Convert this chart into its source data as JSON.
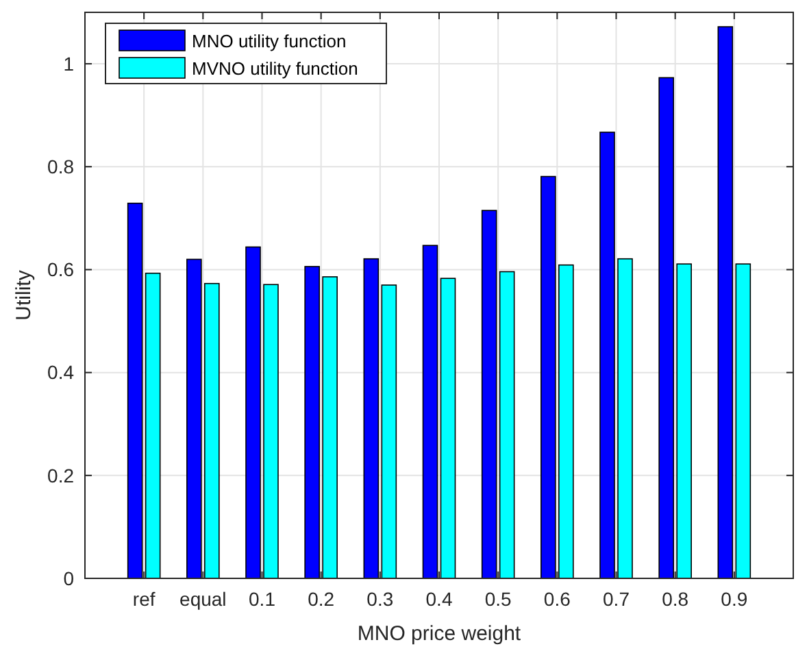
{
  "chart_data": {
    "type": "bar",
    "xlabel": "MNO price weight",
    "ylabel": "Utility",
    "categories": [
      "ref",
      "equal",
      "0.1",
      "0.2",
      "0.3",
      "0.4",
      "0.5",
      "0.6",
      "0.7",
      "0.8",
      "0.9"
    ],
    "series": [
      {
        "name": "MNO utility function",
        "color": "#0000ff",
        "values": [
          0.729,
          0.62,
          0.644,
          0.606,
          0.621,
          0.647,
          0.715,
          0.781,
          0.867,
          0.973,
          1.072
        ]
      },
      {
        "name": "MVNO utility function",
        "color": "#00ffff",
        "values": [
          0.593,
          0.573,
          0.571,
          0.586,
          0.57,
          0.583,
          0.596,
          0.609,
          0.621,
          0.611,
          0.611
        ]
      }
    ],
    "ylim": [
      0,
      1.1
    ],
    "yticks": [
      0,
      0.2,
      0.4,
      0.6,
      0.8,
      1
    ],
    "grid": true,
    "legend": "top left"
  }
}
